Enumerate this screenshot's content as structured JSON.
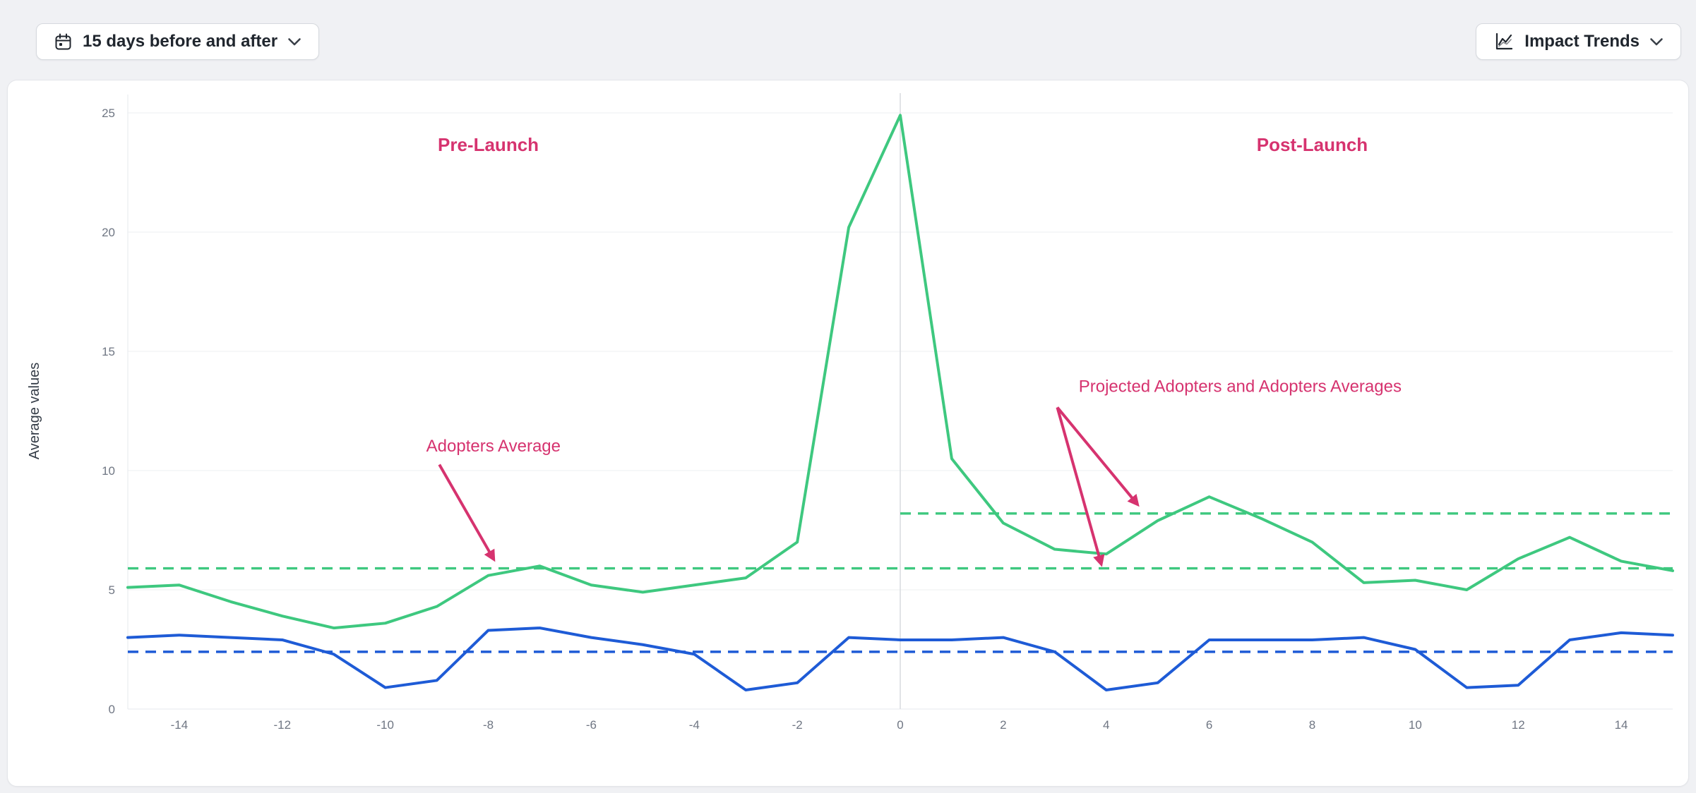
{
  "toolbar": {
    "date_range_button": {
      "label": "15 days before and after",
      "icon": "calendar-icon"
    },
    "impact_trends_button": {
      "label": "Impact Trends",
      "icon": "trend-chart-icon"
    }
  },
  "chart_data": {
    "type": "line",
    "title": "",
    "xlabel": "",
    "ylabel": "Average values",
    "xlim": [
      -15,
      15
    ],
    "ylim": [
      0,
      25
    ],
    "x_ticks": [
      -14,
      -12,
      -10,
      -8,
      -6,
      -4,
      -2,
      0,
      2,
      4,
      6,
      8,
      10,
      12,
      14
    ],
    "y_ticks": [
      0,
      5,
      10,
      15,
      20,
      25
    ],
    "grid": "horizontal",
    "legend": "none",
    "launch_divider_x": 0,
    "x": [
      -15,
      -14,
      -13,
      -12,
      -11,
      -10,
      -9,
      -8,
      -7,
      -6,
      -5,
      -4,
      -3,
      -2,
      -1,
      0,
      1,
      2,
      3,
      4,
      5,
      6,
      7,
      8,
      9,
      10,
      11,
      12,
      13,
      14,
      15
    ],
    "series": [
      {
        "id": "adopters",
        "color": "#3ec87f",
        "style": "solid",
        "values": [
          5.1,
          5.2,
          4.5,
          3.9,
          3.4,
          3.6,
          4.3,
          5.6,
          6.0,
          5.2,
          4.9,
          5.2,
          5.5,
          7.0,
          20.2,
          24.9,
          10.5,
          7.8,
          6.7,
          6.5,
          7.9,
          8.9,
          8.0,
          7.0,
          5.3,
          5.4,
          5.0,
          6.3,
          7.2,
          6.2,
          5.8
        ]
      },
      {
        "id": "comparison",
        "color": "#1e5bd6",
        "style": "solid",
        "values": [
          3.0,
          3.1,
          3.0,
          2.9,
          2.3,
          0.9,
          1.2,
          3.3,
          3.4,
          3.0,
          2.7,
          2.3,
          0.8,
          1.1,
          3.0,
          2.9,
          2.9,
          3.0,
          2.4,
          0.8,
          1.1,
          2.9,
          2.9,
          2.9,
          3.0,
          2.5,
          0.9,
          1.0,
          2.9,
          3.2,
          3.1
        ]
      }
    ],
    "reference_lines": [
      {
        "id": "adopters-average",
        "value": 5.9,
        "color": "#3ec87f",
        "dash": true,
        "x_from": -15,
        "x_to": 15
      },
      {
        "id": "post-launch-adopters-average",
        "value": 8.2,
        "color": "#3ec87f",
        "dash": true,
        "x_from": 0,
        "x_to": 15
      },
      {
        "id": "comparison-average",
        "value": 2.4,
        "color": "#1e5bd6",
        "dash": true,
        "x_from": -15,
        "x_to": 15
      }
    ],
    "annotation_color": "#d6336f",
    "annotations": {
      "labels": [
        {
          "text": "Pre-Launch",
          "x": -8.0,
          "y": 23.4,
          "weight": "bold"
        },
        {
          "text": "Post-Launch",
          "x": 8.0,
          "y": 23.4,
          "weight": "bold"
        },
        {
          "text": "Adopters Average",
          "x": -7.9,
          "y": 10.8,
          "weight": "normal"
        },
        {
          "text": "Projected Adopters and Adopters Averages",
          "x": 6.6,
          "y": 13.3,
          "weight": "normal"
        }
      ],
      "arrows": [
        {
          "x1": -8.95,
          "y1": 10.25,
          "x2": -7.9,
          "y2": 6.3
        },
        {
          "x1": 3.05,
          "y1": 12.65,
          "x2": 4.6,
          "y2": 8.6
        },
        {
          "x1": 3.05,
          "y1": 12.65,
          "x2": 3.9,
          "y2": 6.1
        }
      ]
    },
    "colors": {
      "gridline": "#edeff2",
      "axis_line": "#e6e8ec",
      "divider_line": "#d9dbdf",
      "tick_text": "#6f7683",
      "axis_label_text": "#333b46"
    }
  }
}
